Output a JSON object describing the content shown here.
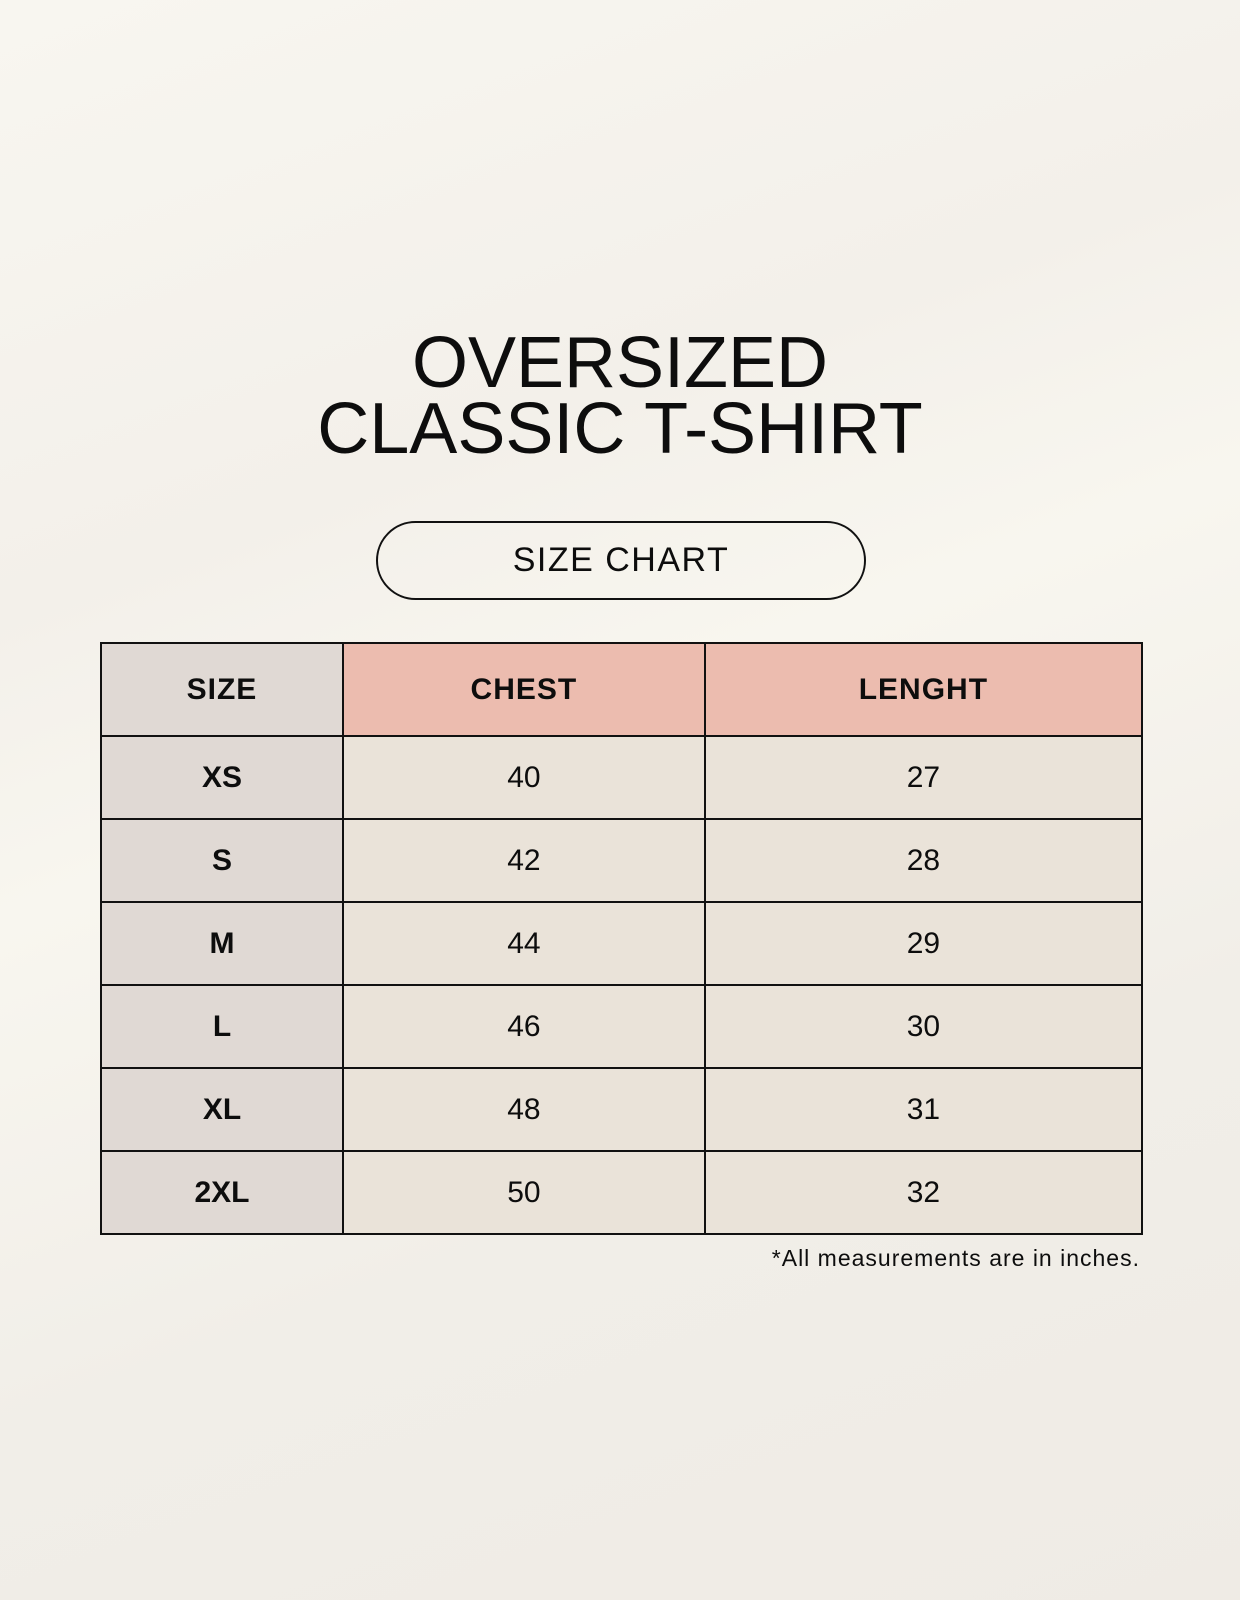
{
  "title": {
    "line1": "OVERSIZED",
    "line2": "CLASSIC T-SHIRT"
  },
  "subtitle": "SIZE CHART",
  "table": {
    "headers": [
      "SIZE",
      "CHEST",
      "LENGHT"
    ],
    "rows": [
      [
        "XS",
        "40",
        "27"
      ],
      [
        "S",
        "42",
        "28"
      ],
      [
        "M",
        "44",
        "29"
      ],
      [
        "L",
        "46",
        "30"
      ],
      [
        "XL",
        "48",
        "31"
      ],
      [
        "2XL",
        "50",
        "32"
      ]
    ]
  },
  "note": "*All measurements are in inches.",
  "colors": {
    "header_accent": "#ecbcaf",
    "size_column": "#e0d9d4",
    "cell": "#eae3d9"
  }
}
